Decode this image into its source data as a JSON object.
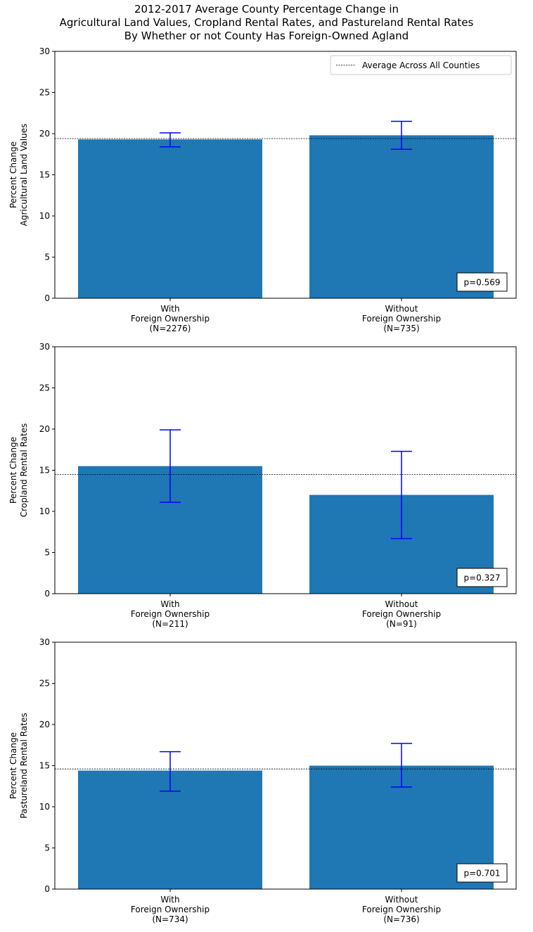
{
  "figure": {
    "title_lines": [
      "2012-2017 Average County Percentage Change in",
      "Agricultural Land Values, Cropland Rental Rates, and Pastureland Rental Rates",
      "By Whether or not County Has Foreign-Owned Agland"
    ],
    "legend_label": "Average Across All Counties",
    "bar_color": "#1f77b4",
    "errorbar_color": "#0000ff",
    "reference_line_color": "#000000"
  },
  "chart_data": [
    {
      "type": "bar",
      "ylabel": [
        "Percent Change",
        "Agricultural Land Values"
      ],
      "ylim": [
        0,
        30
      ],
      "yticks": [
        "0",
        "5",
        "10",
        "15",
        "20",
        "25",
        "30"
      ],
      "categories": [
        [
          "With",
          "Foreign Ownership",
          "(N=2276)"
        ],
        [
          "Without",
          "Foreign Ownership",
          "(N=735)"
        ]
      ],
      "values": [
        19.3,
        19.8
      ],
      "error_low": [
        18.4,
        18.1
      ],
      "error_high": [
        20.1,
        21.5
      ],
      "reference_line": 19.4,
      "annotation": "p=0.569",
      "legend": "top-right"
    },
    {
      "type": "bar",
      "ylabel": [
        "Percent Change",
        "Cropland Rental Rates"
      ],
      "ylim": [
        0,
        30
      ],
      "yticks": [
        "0",
        "5",
        "10",
        "15",
        "20",
        "25",
        "30"
      ],
      "categories": [
        [
          "With",
          "Foreign Ownership",
          "(N=211)"
        ],
        [
          "Without",
          "Foreign Ownership",
          "(N=91)"
        ]
      ],
      "values": [
        15.5,
        12.0
      ],
      "error_low": [
        11.1,
        6.7
      ],
      "error_high": [
        19.9,
        17.3
      ],
      "reference_line": 14.5,
      "annotation": "p=0.327"
    },
    {
      "type": "bar",
      "ylabel": [
        "Percent Change",
        "Pastureland Rental Rates"
      ],
      "ylim": [
        0,
        30
      ],
      "yticks": [
        "0",
        "5",
        "10",
        "15",
        "20",
        "25",
        "30"
      ],
      "categories": [
        [
          "With",
          "Foreign Ownership",
          "(N=734)"
        ],
        [
          "Without",
          "Foreign Ownership",
          "(N=736)"
        ]
      ],
      "values": [
        14.4,
        15.0
      ],
      "error_low": [
        11.9,
        12.4
      ],
      "error_high": [
        16.7,
        17.7
      ],
      "reference_line": 14.6,
      "annotation": "p=0.701"
    }
  ]
}
